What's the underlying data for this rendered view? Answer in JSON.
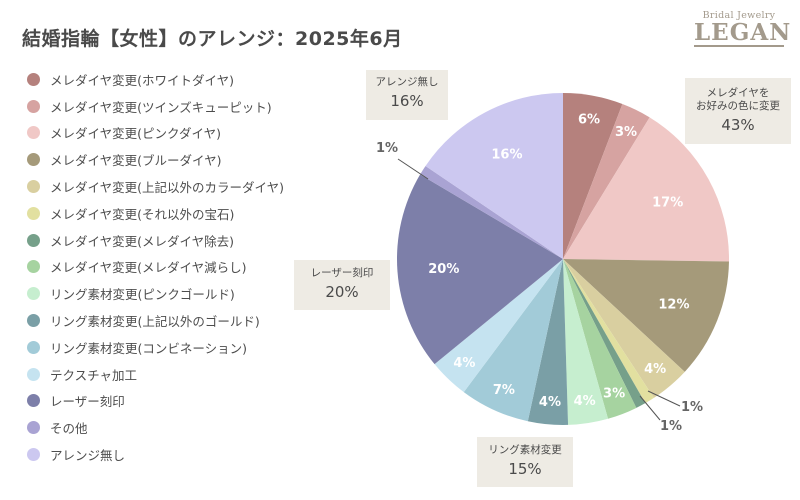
{
  "title": "結婚指輪【女性】のアレンジ：2025年6月",
  "logo": {
    "subtitle": "Bridal Jewelry",
    "name": "LEGAN"
  },
  "chart_data": {
    "type": "pie",
    "title": "結婚指輪【女性】のアレンジ：2025年6月",
    "legend_position": "left",
    "slices": [
      {
        "label": "メレダイヤ変更(ホワイトダイヤ)",
        "value": 6,
        "display": "6%",
        "color": "#b5817d"
      },
      {
        "label": "メレダイヤ変更(ツインズキューピット)",
        "value": 3,
        "display": "3%",
        "color": "#d6a3a1"
      },
      {
        "label": "メレダイヤ変更(ピンクダイヤ)",
        "value": 17,
        "display": "17%",
        "color": "#f0c8c6"
      },
      {
        "label": "メレダイヤ変更(ブルーダイヤ)",
        "value": 12,
        "display": "12%",
        "color": "#a59a7a"
      },
      {
        "label": "メレダイヤ変更(上記以外のカラーダイヤ)",
        "value": 4,
        "display": "4%",
        "color": "#d9cfa0"
      },
      {
        "label": "メレダイヤ変更(それ以外の宝石)",
        "value": 1,
        "display": "1%",
        "color": "#e2e0a0"
      },
      {
        "label": "メレダイヤ変更(メレダイヤ除去)",
        "value": 1,
        "display": "1%",
        "color": "#76a08a"
      },
      {
        "label": "メレダイヤ変更(メレダイヤ減らし)",
        "value": 3,
        "display": "3%",
        "color": "#a6d3a0"
      },
      {
        "label": "リング素材変更(ピンクゴールド)",
        "value": 4,
        "display": "4%",
        "color": "#c6eecf"
      },
      {
        "label": "リング素材変更(上記以外のゴールド)",
        "value": 4,
        "display": "4%",
        "color": "#7a9fa6"
      },
      {
        "label": "リング素材変更(コンビネーション)",
        "value": 7,
        "display": "7%",
        "color": "#a2cbd8"
      },
      {
        "label": "テクスチャ加工",
        "value": 4,
        "display": "4%",
        "color": "#c5e3f0"
      },
      {
        "label": "レーザー刻印",
        "value": 20,
        "display": "20%",
        "color": "#7d7fa9"
      },
      {
        "label": "その他",
        "value": 1,
        "display": "1%",
        "color": "#a9a3d3"
      },
      {
        "label": "アレンジ無し",
        "value": 16,
        "display": "16%",
        "color": "#ccc8f0"
      }
    ],
    "group_callouts": [
      {
        "label": "アレンジ無し",
        "value": "16%"
      },
      {
        "label": "メレダイヤを\nお好みの色に変更",
        "value": "43%"
      },
      {
        "label": "レーザー刻印",
        "value": "20%"
      },
      {
        "label": "リング素材変更",
        "value": "15%"
      }
    ]
  }
}
